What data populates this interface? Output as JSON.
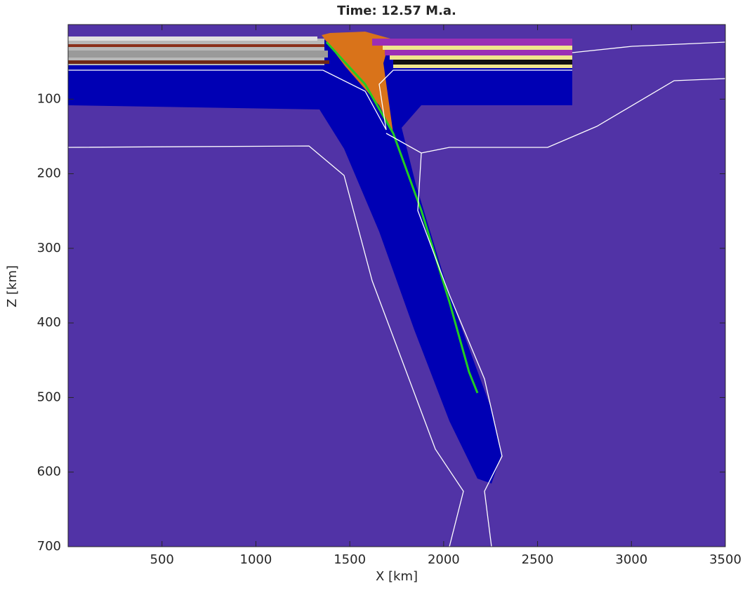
{
  "chart_data": {
    "type": "section",
    "title": "Time: 12.57 M.a.",
    "xlabel": "X [km]",
    "ylabel": "Z [km]",
    "xlim": [
      0,
      3500
    ],
    "ylim": [
      0,
      700
    ],
    "xticks": [
      500,
      1000,
      1500,
      2000,
      2500,
      3000,
      3500
    ],
    "yticks": [
      100,
      200,
      300,
      400,
      500,
      600,
      700
    ],
    "y_inverted": true
  }
}
